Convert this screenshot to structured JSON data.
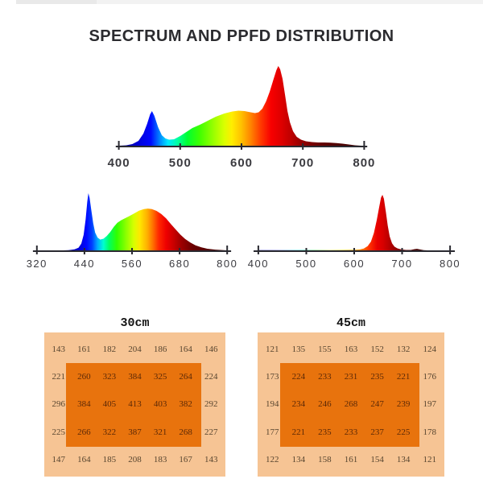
{
  "title": "SPECTRUM AND PPFD DISTRIBUTION",
  "colors": {
    "table_outer_bg": "#f6c494",
    "table_inner_bg": "#e8730d",
    "table_text_light_zone": "#57452f",
    "table_text_dark_zone": "#5c2907",
    "axis": "#2a2a31",
    "title_text": "#2b2b2f"
  },
  "chart_data": [
    {
      "type": "area",
      "name": "combined-spectrum",
      "title": "",
      "x_range": [
        400,
        800
      ],
      "tick_labels": [
        "400",
        "500",
        "600",
        "700",
        "800"
      ],
      "legend": "none",
      "grid": false,
      "peaks": [
        {
          "wavelength_nm": 452,
          "relative_intensity": 0.44
        },
        {
          "wavelength_nm": 595,
          "relative_intensity": 0.45
        },
        {
          "wavelength_nm": 660,
          "relative_intensity": 1.0
        }
      ],
      "points": [
        [
          400,
          0.01
        ],
        [
          412,
          0.015
        ],
        [
          422,
          0.03
        ],
        [
          432,
          0.07
        ],
        [
          440,
          0.16
        ],
        [
          446,
          0.28
        ],
        [
          451,
          0.4
        ],
        [
          454,
          0.44
        ],
        [
          458,
          0.38
        ],
        [
          464,
          0.24
        ],
        [
          470,
          0.14
        ],
        [
          476,
          0.1
        ],
        [
          482,
          0.085
        ],
        [
          490,
          0.09
        ],
        [
          500,
          0.13
        ],
        [
          510,
          0.18
        ],
        [
          520,
          0.23
        ],
        [
          532,
          0.27
        ],
        [
          545,
          0.32
        ],
        [
          558,
          0.37
        ],
        [
          572,
          0.41
        ],
        [
          585,
          0.435
        ],
        [
          595,
          0.445
        ],
        [
          605,
          0.44
        ],
        [
          615,
          0.425
        ],
        [
          622,
          0.415
        ],
        [
          628,
          0.425
        ],
        [
          634,
          0.47
        ],
        [
          640,
          0.56
        ],
        [
          646,
          0.68
        ],
        [
          652,
          0.83
        ],
        [
          657,
          0.95
        ],
        [
          660,
          1.0
        ],
        [
          663,
          0.96
        ],
        [
          667,
          0.84
        ],
        [
          671,
          0.64
        ],
        [
          675,
          0.44
        ],
        [
          679,
          0.3
        ],
        [
          684,
          0.19
        ],
        [
          690,
          0.12
        ],
        [
          697,
          0.085
        ],
        [
          705,
          0.065
        ],
        [
          715,
          0.055
        ],
        [
          725,
          0.05
        ],
        [
          735,
          0.05
        ],
        [
          745,
          0.048
        ],
        [
          755,
          0.042
        ],
        [
          765,
          0.035
        ],
        [
          775,
          0.025
        ],
        [
          785,
          0.015
        ],
        [
          800,
          0.008
        ]
      ]
    },
    {
      "type": "area",
      "name": "full-spectrum-white",
      "title": "",
      "x_range": [
        320,
        800
      ],
      "tick_labels": [
        "320",
        "440",
        "560",
        "680",
        "800"
      ],
      "legend": "none",
      "grid": false,
      "peaks": [
        {
          "wavelength_nm": 450,
          "relative_intensity": 1.0
        },
        {
          "wavelength_nm": 600,
          "relative_intensity": 0.73
        }
      ],
      "points": [
        [
          320,
          0.006
        ],
        [
          350,
          0.008
        ],
        [
          380,
          0.012
        ],
        [
          400,
          0.018
        ],
        [
          415,
          0.03
        ],
        [
          425,
          0.06
        ],
        [
          432,
          0.13
        ],
        [
          438,
          0.28
        ],
        [
          443,
          0.55
        ],
        [
          447,
          0.85
        ],
        [
          450,
          1.0
        ],
        [
          453,
          0.92
        ],
        [
          457,
          0.72
        ],
        [
          462,
          0.48
        ],
        [
          467,
          0.32
        ],
        [
          473,
          0.235
        ],
        [
          480,
          0.2
        ],
        [
          488,
          0.215
        ],
        [
          496,
          0.26
        ],
        [
          505,
          0.33
        ],
        [
          514,
          0.42
        ],
        [
          523,
          0.49
        ],
        [
          532,
          0.53
        ],
        [
          542,
          0.565
        ],
        [
          552,
          0.6
        ],
        [
          565,
          0.65
        ],
        [
          578,
          0.7
        ],
        [
          590,
          0.725
        ],
        [
          600,
          0.735
        ],
        [
          610,
          0.725
        ],
        [
          622,
          0.695
        ],
        [
          634,
          0.64
        ],
        [
          646,
          0.565
        ],
        [
          658,
          0.47
        ],
        [
          670,
          0.375
        ],
        [
          682,
          0.285
        ],
        [
          694,
          0.21
        ],
        [
          707,
          0.15
        ],
        [
          720,
          0.1
        ],
        [
          735,
          0.065
        ],
        [
          750,
          0.042
        ],
        [
          770,
          0.026
        ],
        [
          800,
          0.014
        ]
      ]
    },
    {
      "type": "area",
      "name": "deep-red-spectrum",
      "title": "",
      "x_range": [
        400,
        800
      ],
      "tick_labels": [
        "400",
        "500",
        "600",
        "700",
        "800"
      ],
      "legend": "none",
      "grid": false,
      "peaks": [
        {
          "wavelength_nm": 658,
          "relative_intensity": 1.0
        },
        {
          "wavelength_nm": 730,
          "relative_intensity": 0.04
        }
      ],
      "points": [
        [
          400,
          0.02
        ],
        [
          450,
          0.02
        ],
        [
          500,
          0.022
        ],
        [
          550,
          0.022
        ],
        [
          580,
          0.024
        ],
        [
          600,
          0.026
        ],
        [
          612,
          0.03
        ],
        [
          620,
          0.045
        ],
        [
          628,
          0.09
        ],
        [
          635,
          0.17
        ],
        [
          641,
          0.32
        ],
        [
          647,
          0.55
        ],
        [
          652,
          0.78
        ],
        [
          656,
          0.95
        ],
        [
          659,
          1.0
        ],
        [
          662,
          0.93
        ],
        [
          666,
          0.7
        ],
        [
          670,
          0.45
        ],
        [
          674,
          0.26
        ],
        [
          679,
          0.14
        ],
        [
          684,
          0.08
        ],
        [
          690,
          0.05
        ],
        [
          698,
          0.03
        ],
        [
          708,
          0.022
        ],
        [
          718,
          0.022
        ],
        [
          726,
          0.035
        ],
        [
          731,
          0.042
        ],
        [
          736,
          0.032
        ],
        [
          745,
          0.018
        ],
        [
          760,
          0.012
        ],
        [
          780,
          0.01
        ],
        [
          800,
          0.008
        ]
      ]
    },
    {
      "type": "table",
      "name": "ppfd-30cm",
      "title": "30cm",
      "rows": [
        [
          143,
          161,
          182,
          204,
          186,
          164,
          146
        ],
        [
          221,
          260,
          323,
          384,
          325,
          264,
          224
        ],
        [
          296,
          384,
          405,
          413,
          403,
          382,
          292
        ],
        [
          225,
          266,
          322,
          387,
          321,
          268,
          227
        ],
        [
          147,
          164,
          185,
          208,
          183,
          167,
          143
        ]
      ]
    },
    {
      "type": "table",
      "name": "ppfd-45cm",
      "title": "45cm",
      "rows": [
        [
          121,
          135,
          155,
          163,
          152,
          132,
          124
        ],
        [
          173,
          224,
          233,
          231,
          235,
          221,
          176
        ],
        [
          194,
          234,
          246,
          268,
          247,
          239,
          197
        ],
        [
          177,
          221,
          235,
          233,
          237,
          225,
          178
        ],
        [
          122,
          134,
          158,
          161,
          154,
          134,
          121
        ]
      ]
    }
  ]
}
